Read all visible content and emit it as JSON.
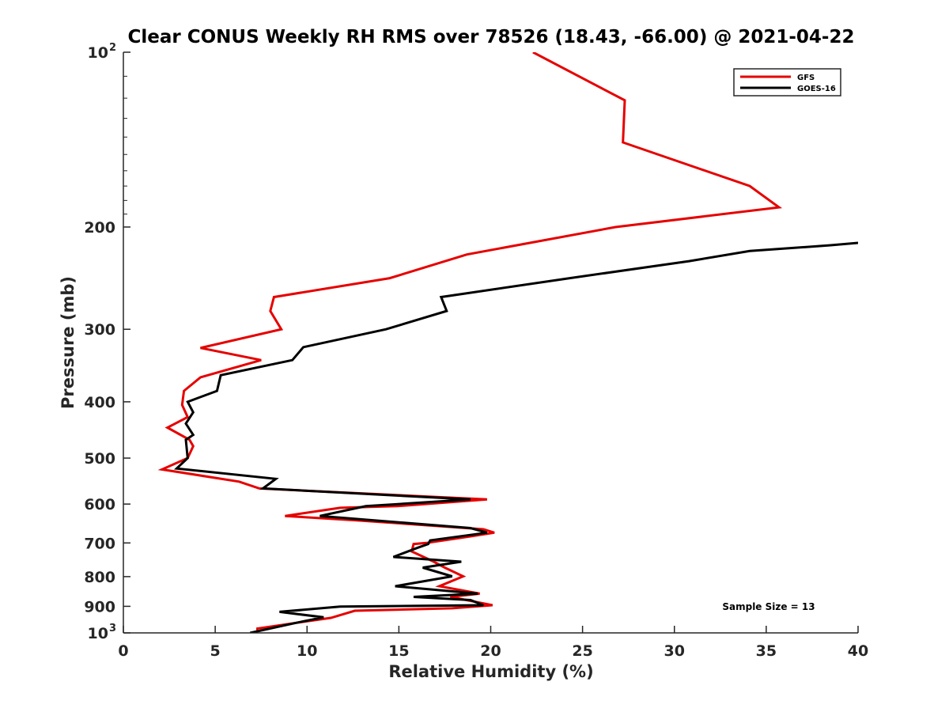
{
  "chart_data": {
    "type": "line",
    "title": "Clear CONUS Weekly RH RMS over 78526 (18.43, -66.00) @ 2021-04-22",
    "xlabel": "Relative Humidity (%)",
    "ylabel": "Pressure (mb)",
    "xlim": [
      0,
      40
    ],
    "ylim": [
      100,
      1000
    ],
    "y_scale": "log",
    "y_reversed": true,
    "x_ticks": [
      0,
      5,
      10,
      15,
      20,
      25,
      30,
      35,
      40
    ],
    "x_tick_labels": [
      "0",
      "5",
      "10",
      "15",
      "20",
      "25",
      "30",
      "35",
      "40"
    ],
    "y_ticks": [
      {
        "value": 100,
        "label": "10",
        "exp": "2"
      },
      {
        "value": 200,
        "label": "200",
        "exp": ""
      },
      {
        "value": 300,
        "label": "300",
        "exp": ""
      },
      {
        "value": 400,
        "label": "400",
        "exp": ""
      },
      {
        "value": 500,
        "label": "500",
        "exp": ""
      },
      {
        "value": 600,
        "label": "600",
        "exp": ""
      },
      {
        "value": 700,
        "label": "700",
        "exp": ""
      },
      {
        "value": 800,
        "label": "800",
        "exp": ""
      },
      {
        "value": 900,
        "label": "900",
        "exp": ""
      },
      {
        "value": 1000,
        "label": "10",
        "exp": "3"
      }
    ],
    "grid": false,
    "legend_position": "top-right",
    "annotation": "Sample Size = 13",
    "series": [
      {
        "name": "GFS",
        "color": "#e60000",
        "points": [
          [
            22.3,
            100
          ],
          [
            27.3,
            121
          ],
          [
            27.2,
            143
          ],
          [
            34.1,
            170
          ],
          [
            35.7,
            185
          ],
          [
            26.8,
            200
          ],
          [
            18.7,
            223
          ],
          [
            14.5,
            245
          ],
          [
            8.2,
            264
          ],
          [
            8.0,
            279
          ],
          [
            8.6,
            300
          ],
          [
            4.2,
            323
          ],
          [
            7.5,
            339
          ],
          [
            4.2,
            363
          ],
          [
            3.3,
            383
          ],
          [
            3.2,
            405
          ],
          [
            3.5,
            425
          ],
          [
            2.4,
            443
          ],
          [
            3.6,
            465
          ],
          [
            3.8,
            477
          ],
          [
            3.5,
            500
          ],
          [
            2.1,
            523
          ],
          [
            6.3,
            549
          ],
          [
            7.4,
            564
          ],
          [
            19.8,
            589
          ],
          [
            14.9,
            605
          ],
          [
            11.8,
            609
          ],
          [
            8.8,
            629
          ],
          [
            12.7,
            640
          ],
          [
            19.6,
            663
          ],
          [
            20.2,
            672
          ],
          [
            18.9,
            682
          ],
          [
            16.5,
            700
          ],
          [
            15.8,
            703
          ],
          [
            15.7,
            724
          ],
          [
            16.9,
            754
          ],
          [
            17.5,
            772
          ],
          [
            18.5,
            799
          ],
          [
            17.2,
            831
          ],
          [
            19.4,
            856
          ],
          [
            17.8,
            867
          ],
          [
            20.1,
            896
          ],
          [
            17.9,
            907
          ],
          [
            12.6,
            916
          ],
          [
            11.3,
            942
          ],
          [
            9.4,
            961
          ],
          [
            7.3,
            983
          ],
          [
            7.3,
            990
          ]
        ]
      },
      {
        "name": "GOES-16",
        "color": "#000000",
        "points": [
          [
            40.0,
            213
          ],
          [
            38.5,
            215
          ],
          [
            34.1,
            220
          ],
          [
            30.8,
            229
          ],
          [
            24.3,
            245
          ],
          [
            17.3,
            264
          ],
          [
            17.6,
            279
          ],
          [
            14.3,
            300
          ],
          [
            9.8,
            322
          ],
          [
            9.2,
            339
          ],
          [
            5.3,
            360
          ],
          [
            5.1,
            383
          ],
          [
            3.5,
            400
          ],
          [
            3.8,
            417
          ],
          [
            3.4,
            436
          ],
          [
            3.8,
            456
          ],
          [
            3.4,
            465
          ],
          [
            3.5,
            500
          ],
          [
            2.9,
            521
          ],
          [
            8.3,
            543
          ],
          [
            7.6,
            564
          ],
          [
            18.9,
            589
          ],
          [
            13.2,
            605
          ],
          [
            10.7,
            629
          ],
          [
            18.9,
            660
          ],
          [
            19.8,
            672
          ],
          [
            16.7,
            693
          ],
          [
            16.6,
            703
          ],
          [
            16.0,
            714
          ],
          [
            14.7,
            740
          ],
          [
            18.4,
            754
          ],
          [
            16.3,
            772
          ],
          [
            17.9,
            799
          ],
          [
            14.8,
            831
          ],
          [
            19.3,
            856
          ],
          [
            15.8,
            867
          ],
          [
            18.9,
            878
          ],
          [
            19.6,
            896
          ],
          [
            11.8,
            901
          ],
          [
            8.5,
            920
          ],
          [
            10.9,
            940
          ],
          [
            9.4,
            961
          ],
          [
            6.9,
            1000
          ]
        ]
      }
    ]
  }
}
